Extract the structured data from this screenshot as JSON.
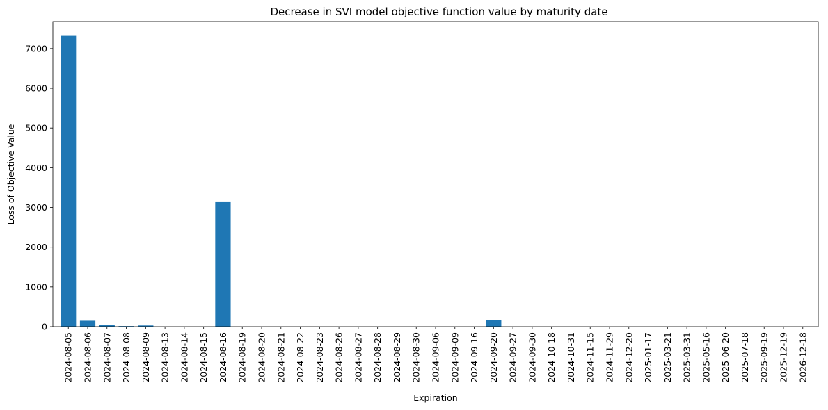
{
  "chart_data": {
    "type": "bar",
    "title": "Decrease in SVI model objective function value by maturity date",
    "xlabel": "Expiration",
    "ylabel": "Loss of Objective Value",
    "ylim": [
      0,
      7680
    ],
    "yticks": [
      0,
      1000,
      2000,
      3000,
      4000,
      5000,
      6000,
      7000
    ],
    "bar_color": "#1f77b4",
    "grid": false,
    "categories": [
      "2024-08-05",
      "2024-08-06",
      "2024-08-07",
      "2024-08-08",
      "2024-08-09",
      "2024-08-13",
      "2024-08-14",
      "2024-08-15",
      "2024-08-16",
      "2024-08-19",
      "2024-08-20",
      "2024-08-21",
      "2024-08-22",
      "2024-08-23",
      "2024-08-26",
      "2024-08-27",
      "2024-08-28",
      "2024-08-29",
      "2024-08-30",
      "2024-09-06",
      "2024-09-09",
      "2024-09-16",
      "2024-09-20",
      "2024-09-27",
      "2024-09-30",
      "2024-10-18",
      "2024-10-31",
      "2024-11-15",
      "2024-11-29",
      "2024-12-20",
      "2025-01-17",
      "2025-03-21",
      "2025-03-31",
      "2025-05-16",
      "2025-06-20",
      "2025-07-18",
      "2025-09-19",
      "2025-12-19",
      "2026-12-18"
    ],
    "values": [
      7320,
      150,
      35,
      15,
      30,
      0,
      0,
      0,
      3150,
      0,
      0,
      0,
      0,
      0,
      0,
      0,
      0,
      0,
      0,
      0,
      0,
      0,
      170,
      0,
      0,
      0,
      0,
      0,
      0,
      0,
      0,
      0,
      0,
      0,
      0,
      0,
      0,
      0,
      0
    ]
  }
}
